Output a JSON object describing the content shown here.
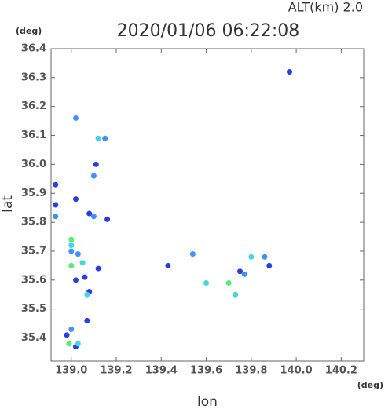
{
  "chart_data": {
    "type": "scatter",
    "title": "2020/01/06 06:22:08",
    "subtitle": "ALT(km) 2.0",
    "x_label": "lon",
    "y_label": "lat",
    "x_unit": "(deg)",
    "y_unit": "(deg)",
    "xlim": [
      138.91,
      140.3
    ],
    "ylim": [
      35.32,
      36.4
    ],
    "xticks": [
      {
        "value": 139,
        "label": "139.0"
      },
      {
        "value": 139.2,
        "label": "139.2"
      },
      {
        "value": 139.4,
        "label": "139.4"
      },
      {
        "value": 139.6,
        "label": "139.6"
      },
      {
        "value": 139.8,
        "label": "139.8"
      },
      {
        "value": 140,
        "label": "140.0"
      },
      {
        "value": 140.2,
        "label": "140.2"
      }
    ],
    "yticks": [
      35.4,
      35.5,
      35.6,
      35.7,
      35.8,
      35.9,
      {
        "value": 36,
        "label": "36.0"
      },
      36.1,
      36.2,
      36.3,
      36.4
    ],
    "series": [
      {
        "color": "#2a3ce8",
        "x": [
          138.93,
          138.93,
          139.97,
          139.11,
          139.02,
          139.06,
          139.08,
          138.98,
          139.02,
          139.07,
          139.88,
          139.75,
          139.43,
          139.16,
          139.08,
          139.02,
          139.12
        ],
        "y": [
          35.93,
          35.86,
          36.32,
          36.0,
          35.88,
          35.61,
          35.56,
          35.41,
          35.37,
          35.46,
          35.65,
          35.63,
          35.65,
          35.81,
          35.83,
          35.6,
          35.64
        ]
      },
      {
        "color": "#4090ff",
        "x": [
          138.93,
          139.0,
          139.1,
          139.15,
          139.1,
          139.02,
          139.0,
          139.03,
          139.77,
          139.86,
          139.54
        ],
        "y": [
          35.82,
          35.7,
          35.82,
          36.09,
          35.96,
          36.16,
          35.43,
          35.69,
          35.62,
          35.68,
          35.69
        ]
      },
      {
        "color": "#40d8e8",
        "x": [
          139.12,
          139.0,
          139.05,
          139.8,
          139.03,
          139.07,
          139.6,
          139.73
        ],
        "y": [
          36.09,
          35.72,
          35.66,
          35.68,
          35.38,
          35.55,
          35.59,
          35.55
        ]
      },
      {
        "color": "#50f070",
        "x": [
          139.0,
          138.99,
          139.7,
          139.0
        ],
        "y": [
          35.74,
          35.38,
          35.59,
          35.65
        ]
      }
    ]
  }
}
